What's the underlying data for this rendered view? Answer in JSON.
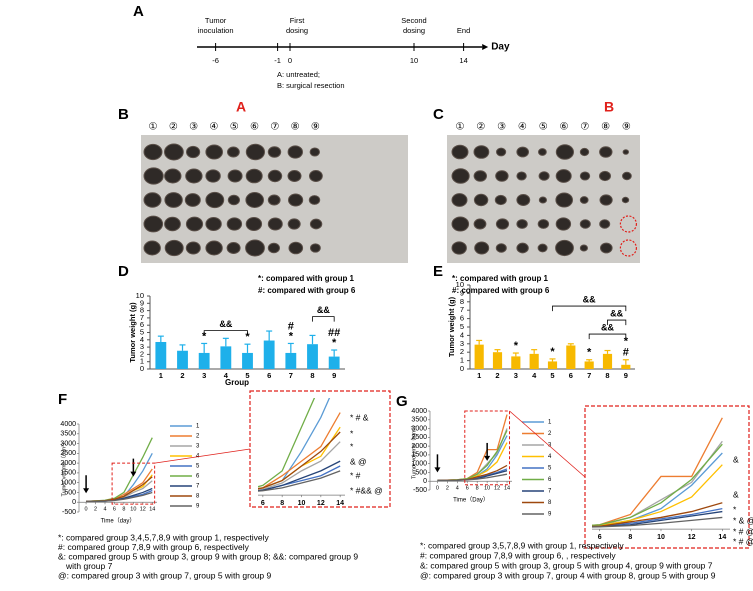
{
  "timeline": {
    "panel": "A",
    "axis_label": "Day",
    "xlim": [
      -7.5,
      15.5
    ],
    "ticks": [
      -6,
      -1,
      0,
      10,
      14
    ],
    "events": [
      {
        "day": -6,
        "label": [
          "Tumor",
          "inoculation"
        ]
      },
      {
        "day": 0,
        "label": [
          "First",
          "dosing"
        ]
      },
      {
        "day": 10,
        "label": [
          "Second",
          "dosing"
        ]
      },
      {
        "day": 14,
        "label": [
          "End"
        ]
      }
    ],
    "legend": [
      "A: untreated;",
      "B: surgical  resection"
    ]
  },
  "photos": [
    {
      "panel": "B",
      "title": "A",
      "groups": [
        "①",
        "②",
        "③",
        "④",
        "⑤",
        "⑥",
        "⑦",
        "⑧",
        "⑨"
      ]
    },
    {
      "panel": "C",
      "title": "B",
      "groups": [
        "①",
        "②",
        "③",
        "④",
        "⑤",
        "⑥",
        "⑦",
        "⑧",
        "⑨"
      ]
    }
  ],
  "chart_data": [
    {
      "panel": "D",
      "type": "bar",
      "notes": [
        "*: compared with group 1",
        "#: compared with group 6"
      ],
      "x_label": "Group",
      "y_label": "Tumor weight  (g)",
      "color": "#1eb0ea",
      "categories": [
        "1",
        "2",
        "3",
        "4",
        "5",
        "6",
        "7",
        "8",
        "9"
      ],
      "values": [
        3.7,
        2.5,
        2.2,
        3.1,
        2.2,
        3.9,
        2.2,
        3.4,
        1.7
      ],
      "errors": [
        0.8,
        0.8,
        1.3,
        1.1,
        1.2,
        1.3,
        1.3,
        1.2,
        0.9
      ],
      "ylim": [
        0,
        10
      ],
      "yticks": [
        0,
        1,
        2,
        3,
        4,
        5,
        6,
        7,
        8,
        9,
        10
      ],
      "marks": [
        [],
        [],
        [
          "*"
        ],
        [],
        [
          "*"
        ],
        [],
        [
          "*",
          "#"
        ],
        [],
        [
          "*",
          "##"
        ]
      ],
      "brackets": [
        {
          "from": "3",
          "to": "5",
          "label": "&&"
        },
        {
          "from": "8",
          "to": "9",
          "label": "&&"
        }
      ]
    },
    {
      "panel": "E",
      "type": "bar",
      "notes": [
        "*: compared with group 1",
        "#: compared with group 6"
      ],
      "y_label": "Tumor weight  (g)",
      "color": "#f7b900",
      "categories": [
        "1",
        "2",
        "3",
        "4",
        "5",
        "6",
        "7",
        "8",
        "9"
      ],
      "values": [
        2.9,
        2.0,
        1.5,
        1.8,
        0.9,
        2.8,
        0.9,
        1.8,
        0.5
      ],
      "errors": [
        0.5,
        0.3,
        0.4,
        0.5,
        0.3,
        0.2,
        0.2,
        0.4,
        0.6
      ],
      "ylim": [
        0,
        10
      ],
      "yticks": [
        0,
        1,
        2,
        3,
        4,
        5,
        6,
        7,
        8,
        9,
        10
      ],
      "marks": [
        [],
        [],
        [
          "*"
        ],
        [],
        [
          "*"
        ],
        [],
        [
          "*"
        ],
        [],
        [
          "#",
          "*"
        ]
      ],
      "brackets": [
        {
          "from": "7",
          "to": "9",
          "label": "&&"
        },
        {
          "from": "8",
          "to": "9",
          "label": "&&"
        },
        {
          "from": "5",
          "to": "9",
          "label": "&&"
        }
      ]
    },
    {
      "panel": "F",
      "type": "line",
      "x_label": "Time（day）",
      "y_label": "Tumor volume（mm³）",
      "x": [
        0,
        2,
        4,
        6,
        8,
        10,
        12,
        14
      ],
      "xlim": [
        -1.5,
        15
      ],
      "xticks": [
        0,
        2,
        4,
        6,
        8,
        10,
        12,
        14
      ],
      "ylim": [
        -500,
        4000
      ],
      "yticks": [
        -500,
        0,
        500,
        1000,
        1500,
        2000,
        2500,
        3000,
        3500,
        4000
      ],
      "arrows": [
        0,
        10
      ],
      "inset_xlim": [
        5.5,
        14.5
      ],
      "inset_ylim": [
        -100,
        2000
      ],
      "inset_annotations": [
        "* # &",
        "*",
        "*",
        "&   @",
        "* #",
        "* #&& @"
      ],
      "series": [
        {
          "name": "1",
          "color": "#5b9bd5",
          "values": [
            50,
            60,
            80,
            150,
            300,
            900,
            1600,
            2500
          ]
        },
        {
          "name": "2",
          "color": "#ed7d31",
          "values": [
            50,
            60,
            80,
            150,
            400,
            700,
            1000,
            1700
          ]
        },
        {
          "name": "3",
          "color": "#a5a5a5",
          "values": [
            50,
            60,
            70,
            120,
            250,
            500,
            700,
            1100
          ]
        },
        {
          "name": "4",
          "color": "#ffc000",
          "values": [
            50,
            60,
            80,
            150,
            300,
            600,
            800,
            1400
          ]
        },
        {
          "name": "5",
          "color": "#4472c4",
          "values": [
            50,
            50,
            60,
            100,
            200,
            300,
            400,
            600
          ]
        },
        {
          "name": "6",
          "color": "#70ad47",
          "values": [
            50,
            70,
            100,
            200,
            500,
            1400,
            2300,
            3300
          ]
        },
        {
          "name": "7",
          "color": "#264478",
          "values": [
            50,
            50,
            60,
            100,
            200,
            350,
            500,
            700
          ]
        },
        {
          "name": "8",
          "color": "#9e480e",
          "values": [
            50,
            60,
            80,
            150,
            300,
            600,
            900,
            1300
          ]
        },
        {
          "name": "9",
          "color": "#636363",
          "values": [
            50,
            50,
            60,
            90,
            150,
            250,
            350,
            500
          ]
        }
      ],
      "notes": [
        "*: compared group 3,4,5,7,8,9 with group 1, respectively",
        "#: compared group 7,8,9 with group 6,  respectively",
        "&: compared group 5 with group 3, group 9 with group 8;     &&: compared group 9",
        "with group 7",
        "@: compared group 3 with group 7, group 5 with group 9"
      ]
    },
    {
      "panel": "G",
      "type": "line",
      "x_label": "Time（Day）",
      "y_label": "Tumor volume（mm³）",
      "x": [
        0,
        2,
        4,
        6,
        8,
        10,
        12,
        14
      ],
      "xlim": [
        -1.5,
        15
      ],
      "xticks": [
        0,
        2,
        4,
        6,
        8,
        10,
        12,
        14
      ],
      "ylim": [
        -500,
        4000
      ],
      "yticks": [
        -500,
        0,
        500,
        1000,
        1500,
        2000,
        2500,
        3000,
        3500,
        4000
      ],
      "arrows": [
        0,
        10
      ],
      "inset_xlim": [
        5.5,
        14.5
      ],
      "inset_ylim": [
        -200,
        4000
      ],
      "inset_annotations": [
        "&",
        "&",
        "*",
        "*  & @",
        "*  # @",
        "*  # @"
      ],
      "series": [
        {
          "name": "1",
          "color": "#5b9bd5",
          "values": [
            50,
            60,
            80,
            120,
            300,
            700,
            1500,
            2600
          ]
        },
        {
          "name": "2",
          "color": "#ed7d31",
          "values": [
            50,
            60,
            80,
            150,
            500,
            1800,
            1800,
            3800
          ]
        },
        {
          "name": "3",
          "color": "#a5a5a5",
          "values": [
            50,
            60,
            70,
            120,
            400,
            1000,
            1600,
            3000
          ]
        },
        {
          "name": "4",
          "color": "#ffc000",
          "values": [
            50,
            60,
            80,
            120,
            300,
            600,
            1100,
            2200
          ]
        },
        {
          "name": "5",
          "color": "#4472c4",
          "values": [
            50,
            50,
            60,
            100,
            200,
            350,
            500,
            700
          ]
        },
        {
          "name": "6",
          "color": "#70ad47",
          "values": [
            50,
            60,
            80,
            150,
            400,
            900,
            1700,
            2900
          ]
        },
        {
          "name": "7",
          "color": "#264478",
          "values": [
            50,
            50,
            60,
            90,
            150,
            300,
            450,
            600
          ]
        },
        {
          "name": "8",
          "color": "#9e480e",
          "values": [
            50,
            60,
            70,
            100,
            250,
            400,
            600,
            900
          ]
        },
        {
          "name": "9",
          "color": "#636363",
          "values": [
            50,
            50,
            60,
            80,
            120,
            200,
            300,
            400
          ]
        }
      ],
      "notes": [
        "*: compared group 3,5,7,8,9 with group 1, respectively",
        "#: compared group 7,8,9 with group 6, , respectively",
        "&: compared group 5 with group 3, group 5 with group 4,  group 9 with group 7",
        "@: compared group 3 with group 7, group 4 with group 8, group 5 with group 9"
      ]
    }
  ]
}
